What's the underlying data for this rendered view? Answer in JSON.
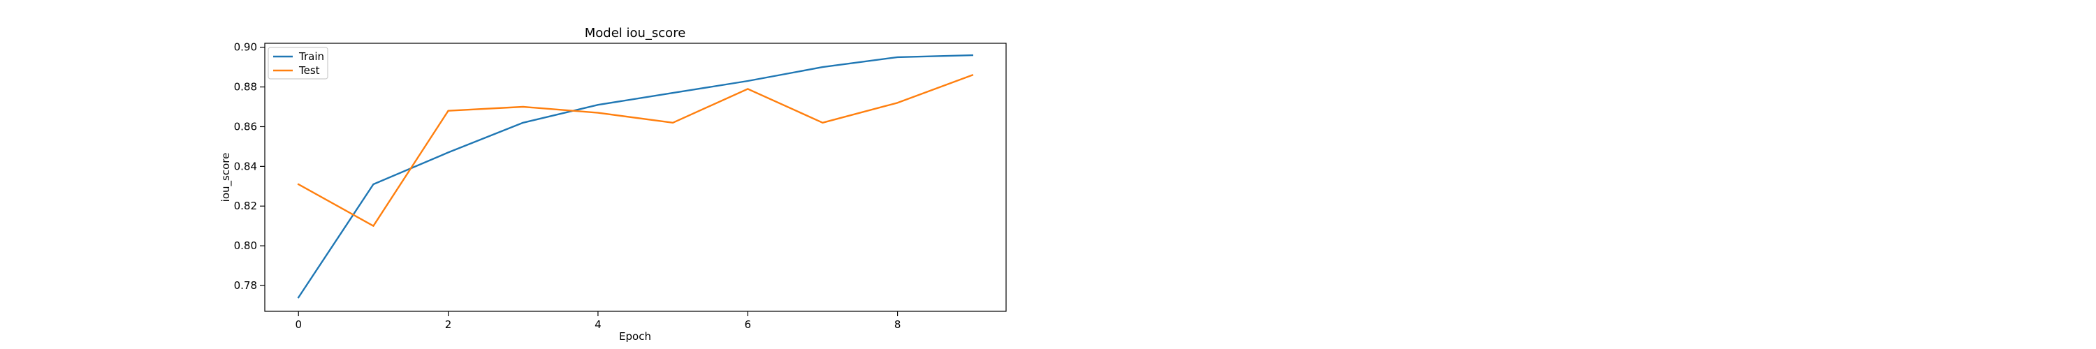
{
  "chart_data": {
    "type": "line",
    "title": "Model iou_score",
    "xlabel": "Epoch",
    "ylabel": "iou_score",
    "x": [
      0,
      1,
      2,
      3,
      4,
      5,
      6,
      7,
      8,
      9
    ],
    "xlim": [
      -0.45,
      9.45
    ],
    "ylim": [
      0.767,
      0.902
    ],
    "xticks": [
      0,
      2,
      4,
      6,
      8
    ],
    "yticks": [
      0.78,
      0.8,
      0.82,
      0.84,
      0.86,
      0.88,
      0.9
    ],
    "xtick_labels": [
      "0",
      "2",
      "4",
      "6",
      "8"
    ],
    "ytick_labels": [
      "0.78",
      "0.80",
      "0.82",
      "0.84",
      "0.86",
      "0.88",
      "0.90"
    ],
    "grid": false,
    "legend_position": "top-left",
    "series": [
      {
        "name": "Train",
        "color": "#1f77b4",
        "values": [
          0.774,
          0.831,
          0.847,
          0.862,
          0.871,
          0.877,
          0.883,
          0.89,
          0.895,
          0.896
        ]
      },
      {
        "name": "Test",
        "color": "#ff7f0e",
        "values": [
          0.831,
          0.81,
          0.868,
          0.87,
          0.867,
          0.862,
          0.879,
          0.862,
          0.872,
          0.886
        ]
      }
    ]
  }
}
